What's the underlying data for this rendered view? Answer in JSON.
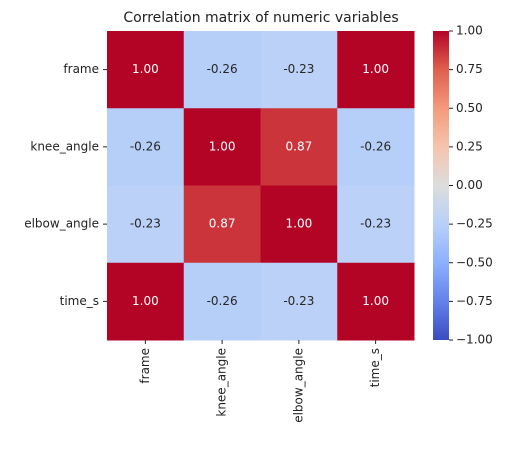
{
  "chart_data": {
    "type": "heatmap",
    "title": "Correlation matrix of numeric variables",
    "x_categories": [
      "frame",
      "knee_angle",
      "elbow_angle",
      "time_s"
    ],
    "y_categories": [
      "frame",
      "knee_angle",
      "elbow_angle",
      "time_s"
    ],
    "values": [
      [
        1,
        -0.26,
        -0.23,
        1
      ],
      [
        -0.26,
        1,
        0.87,
        -0.26
      ],
      [
        -0.23,
        0.87,
        1,
        -0.23
      ],
      [
        1,
        -0.26,
        -0.23,
        1
      ]
    ],
    "value_labels": [
      [
        "1.00",
        "-0.26",
        "-0.23",
        "1.00"
      ],
      [
        "-0.26",
        "1.00",
        "0.87",
        "-0.26"
      ],
      [
        "-0.23",
        "0.87",
        "1.00",
        "-0.23"
      ],
      [
        "1.00",
        "-0.26",
        "-0.23",
        "1.00"
      ]
    ],
    "colormap": "coolwarm",
    "clim": [
      -1,
      1
    ],
    "cticks": [
      {
        "value": -1,
        "label": "−1.00"
      },
      {
        "value": -0.75,
        "label": "−0.75"
      },
      {
        "value": -0.5,
        "label": "−0.50"
      },
      {
        "value": -0.25,
        "label": "−0.25"
      },
      {
        "value": 0,
        "label": "0.00"
      },
      {
        "value": 0.25,
        "label": "0.25"
      },
      {
        "value": 0.5,
        "label": "0.50"
      },
      {
        "value": 0.75,
        "label": "0.75"
      },
      {
        "value": 1,
        "label": "1.00"
      }
    ]
  }
}
